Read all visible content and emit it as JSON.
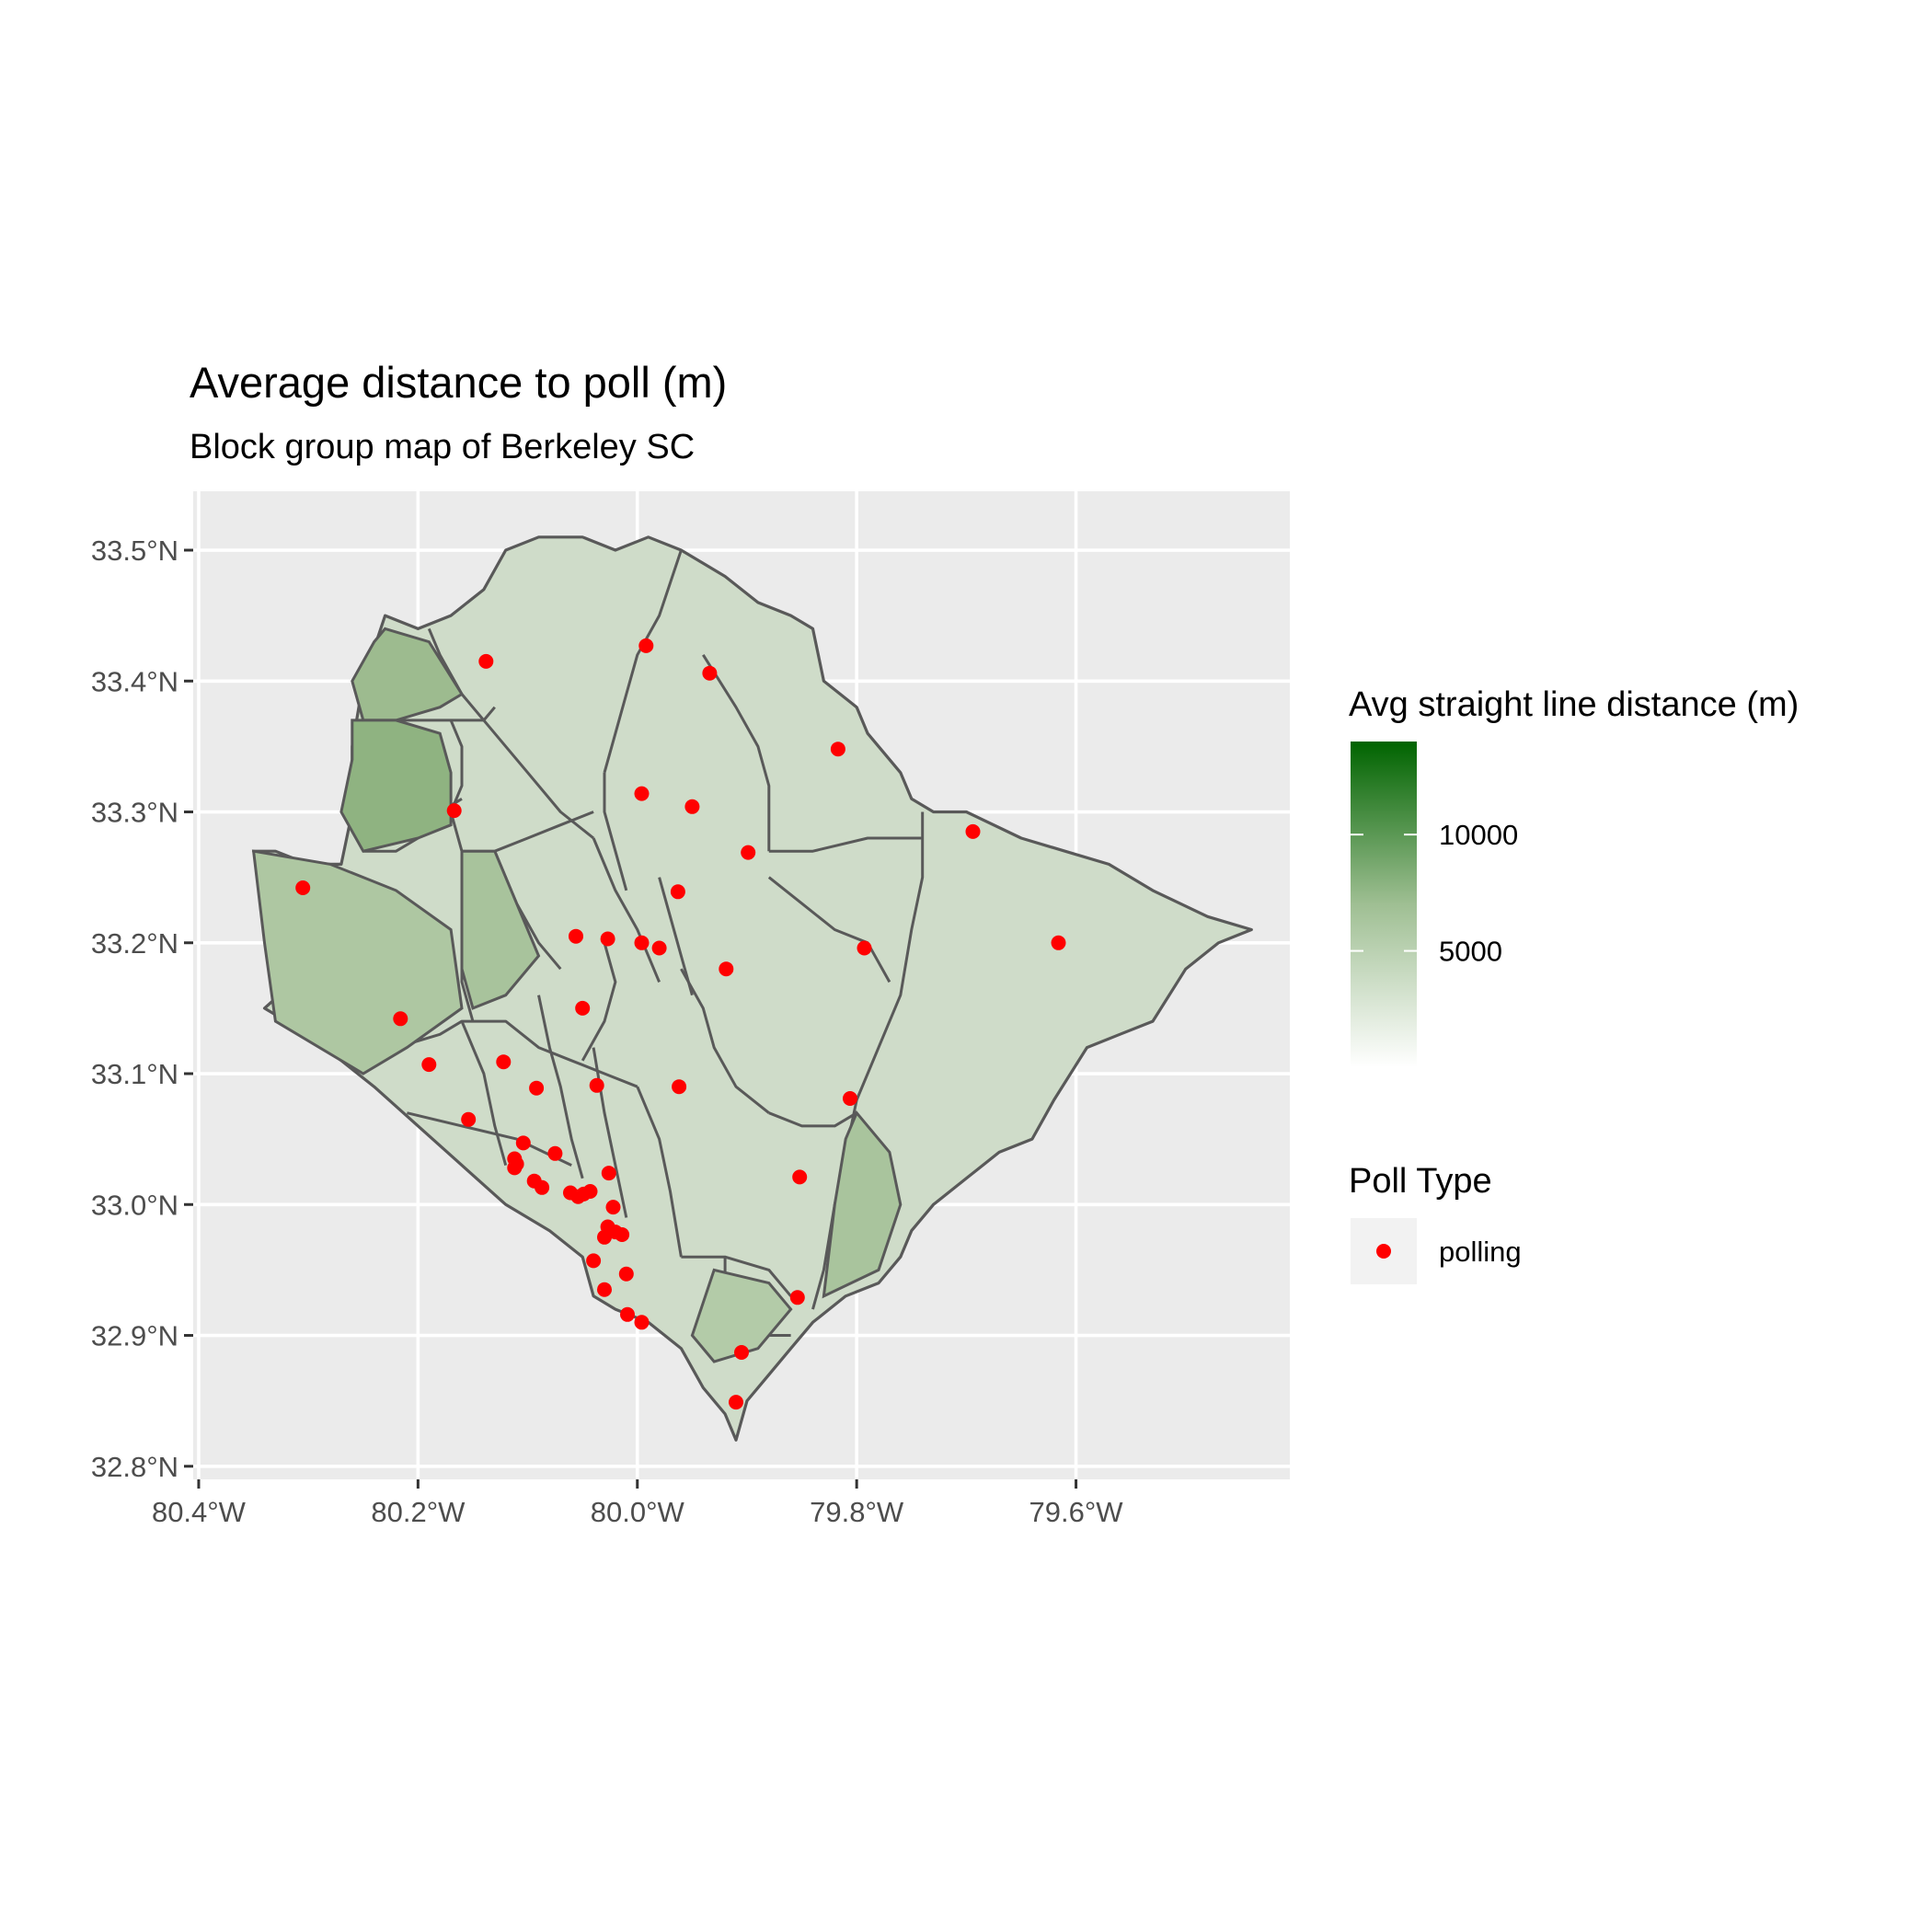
{
  "title": "Average distance to poll (m)",
  "subtitle": "Block group map of Berkeley SC",
  "y_axis": {
    "ticks": [
      {
        "value": 33.5,
        "label": "33.5°N"
      },
      {
        "value": 33.4,
        "label": "33.4°N"
      },
      {
        "value": 33.3,
        "label": "33.3°N"
      },
      {
        "value": 33.2,
        "label": "33.2°N"
      },
      {
        "value": 33.1,
        "label": "33.1°N"
      },
      {
        "value": 33.0,
        "label": "33.0°N"
      },
      {
        "value": 32.9,
        "label": "32.9°N"
      },
      {
        "value": 32.8,
        "label": "32.8°N"
      }
    ]
  },
  "x_axis": {
    "ticks": [
      {
        "value": -80.4,
        "label": "80.4°W"
      },
      {
        "value": -80.2,
        "label": "80.2°W"
      },
      {
        "value": -80.0,
        "label": "80.0°W"
      },
      {
        "value": -79.8,
        "label": "79.8°W"
      },
      {
        "value": -79.6,
        "label": "79.6°W"
      }
    ]
  },
  "legend_fill": {
    "title": "Avg straight line distance (m)",
    "low_color": "#ffffff",
    "high_color": "#006400",
    "ticks": [
      {
        "value": 10000,
        "label": "10000"
      },
      {
        "value": 5000,
        "label": "5000"
      }
    ]
  },
  "legend_points": {
    "title": "Poll Type",
    "entries": [
      {
        "label": "polling",
        "color": "#ff0000"
      }
    ]
  },
  "colors": {
    "panel_bg": "#ebebeb",
    "grid": "#ffffff",
    "border": "#595959",
    "point": "#ff0000"
  },
  "chart_data": {
    "type": "scatter",
    "title": "Average distance to poll (m)",
    "subtitle": "Block group map of Berkeley SC",
    "xlim": [
      -80.405,
      -79.405
    ],
    "ylim": [
      32.79,
      33.545
    ],
    "fill_scale": {
      "min": 0,
      "max": 14000
    },
    "series": [
      {
        "name": "polling",
        "points": [
          [
            -80.138,
            33.415
          ],
          [
            -79.992,
            33.427
          ],
          [
            -79.934,
            33.406
          ],
          [
            -79.817,
            33.348
          ],
          [
            -79.996,
            33.314
          ],
          [
            -79.95,
            33.304
          ],
          [
            -80.167,
            33.301
          ],
          [
            -79.899,
            33.269
          ],
          [
            -79.694,
            33.285
          ],
          [
            -80.305,
            33.242
          ],
          [
            -79.963,
            33.239
          ],
          [
            -80.056,
            33.205
          ],
          [
            -80.027,
            33.203
          ],
          [
            -79.996,
            33.2
          ],
          [
            -79.98,
            33.196
          ],
          [
            -79.793,
            33.196
          ],
          [
            -79.616,
            33.2
          ],
          [
            -79.919,
            33.18
          ],
          [
            -80.05,
            33.15
          ],
          [
            -80.216,
            33.142
          ],
          [
            -80.19,
            33.107
          ],
          [
            -80.122,
            33.109
          ],
          [
            -80.092,
            33.089
          ],
          [
            -80.037,
            33.091
          ],
          [
            -79.962,
            33.09
          ],
          [
            -79.806,
            33.081
          ],
          [
            -80.154,
            33.065
          ],
          [
            -80.104,
            33.047
          ],
          [
            -80.075,
            33.039
          ],
          [
            -80.112,
            33.035
          ],
          [
            -80.112,
            33.028
          ],
          [
            -80.11,
            33.031
          ],
          [
            -80.026,
            33.024
          ],
          [
            -79.852,
            33.021
          ],
          [
            -80.094,
            33.018
          ],
          [
            -80.087,
            33.013
          ],
          [
            -80.061,
            33.009
          ],
          [
            -80.054,
            33.006
          ],
          [
            -80.049,
            33.008
          ],
          [
            -80.043,
            33.01
          ],
          [
            -80.022,
            32.998
          ],
          [
            -80.027,
            32.983
          ],
          [
            -80.03,
            32.975
          ],
          [
            -80.02,
            32.979
          ],
          [
            -80.014,
            32.977
          ],
          [
            -80.04,
            32.957
          ],
          [
            -80.01,
            32.947
          ],
          [
            -80.03,
            32.935
          ],
          [
            -79.854,
            32.929
          ],
          [
            -80.009,
            32.916
          ],
          [
            -79.996,
            32.91
          ],
          [
            -79.905,
            32.887
          ],
          [
            -79.91,
            32.849
          ]
        ]
      }
    ]
  }
}
